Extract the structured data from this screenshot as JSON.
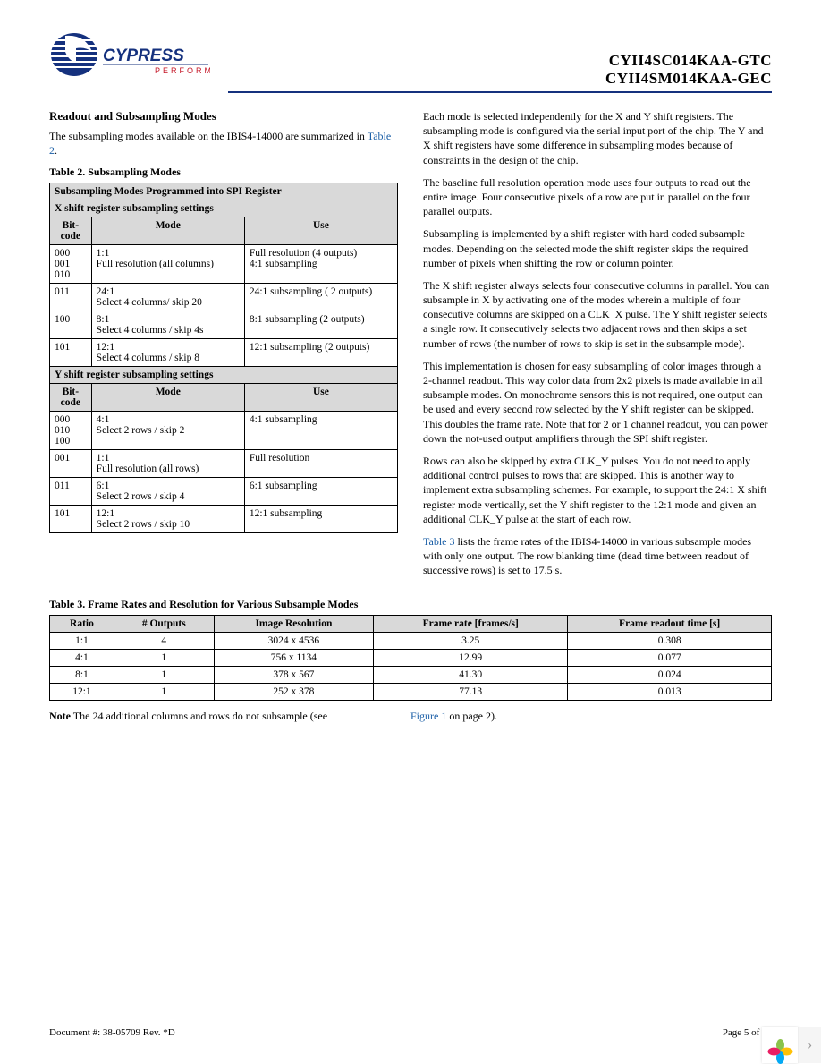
{
  "header": {
    "part1": "CYII4SC014KAA-GTC",
    "part2": "CYII4SM014KAA-GEC",
    "logo_brand": "CYPRESS",
    "logo_tag": "PERFORM"
  },
  "left": {
    "section_title": "Readout and Subsampling Modes",
    "intro_a": "The subsampling modes available on the IBIS4-14000 are summarized in ",
    "intro_link": "Table 2",
    "intro_b": ".",
    "t2_caption": "Table 2.  Subsampling Modes",
    "t2_title": "Subsampling Modes Programmed into SPI Register",
    "t2_x_sub": "X shift register subsampling settings",
    "t2_cols": {
      "bit": "Bit-code",
      "mode": "Mode",
      "use": "Use"
    },
    "t2_x": [
      {
        "bit": "000\n001\n010",
        "mode": "1:1\nFull resolution (all columns)",
        "use": "Full resolution (4 outputs)\n4:1 subsampling"
      },
      {
        "bit": "011",
        "mode": "24:1\nSelect 4 columns/ skip 20",
        "use": "24:1 subsampling ( 2 outputs)"
      },
      {
        "bit": "100",
        "mode": "8:1\nSelect 4 columns / skip 4s",
        "use": "8:1 subsampling (2 outputs)"
      },
      {
        "bit": "101",
        "mode": "12:1\nSelect 4 columns / skip 8",
        "use": "12:1 subsampling (2 outputs)"
      }
    ],
    "t2_y_sub": "Y shift register subsampling settings",
    "t2_y": [
      {
        "bit": "000\n010\n100",
        "mode": "4:1\nSelect 2 rows / skip 2",
        "use": "4:1 subsampling"
      },
      {
        "bit": "001",
        "mode": "1:1\nFull resolution (all rows)",
        "use": "Full resolution"
      },
      {
        "bit": "011",
        "mode": "6:1\nSelect 2 rows / skip 4",
        "use": "6:1 subsampling"
      },
      {
        "bit": "101",
        "mode": "12:1\nSelect 2 rows / skip 10",
        "use": "12:1 subsampling"
      }
    ]
  },
  "right": {
    "p1": "Each mode is selected independently for the X and Y shift registers. The subsampling mode is configured via the serial input port of the chip. The Y and X shift registers have some difference in subsampling modes because of constraints in the design of the chip.",
    "p2": "The baseline full resolution operation mode uses four outputs to read out the entire image. Four consecutive pixels of a row are put in parallel on the four parallel outputs.",
    "p3": "Subsampling is implemented by a shift register with hard coded subsample modes. Depending on the selected mode the shift register skips the required number of pixels when shifting the row or column pointer.",
    "p4": "The X shift register always selects four consecutive columns in parallel. You can subsample in X by activating one of the modes wherein a multiple of four consecutive columns are skipped on a CLK_X pulse. The Y shift register selects a single row. It consecutively selects two adjacent rows and then skips a set number of rows (the number of rows to skip is set in the subsample mode).",
    "p5": "This implementation is chosen for easy subsampling of color images through a 2-channel readout. This way color data from 2x2 pixels is made available in all subsample modes. On monochrome sensors this is not required, one output can be used and every second row selected by the Y shift register can be skipped. This doubles the frame rate. Note that for 2 or 1 channel readout, you can power down the not-used output amplifiers through the SPI shift register.",
    "p6": "Rows can also be skipped by extra CLK_Y pulses. You do not need to apply additional control pulses to rows that are skipped. This is another way to implement extra subsampling schemes. For example, to support the 24:1 X shift register mode vertically, set the Y shift register to the 12:1 mode and given an additional CLK_Y pulse at the start of each row.",
    "p7a": "Table 3",
    "p7b": " lists the frame rates of the IBIS4-14000 in various subsample modes with only one output. The row blanking time (dead time between readout of successive rows) is set to 17.5 s."
  },
  "t3": {
    "caption": "Table 3.  Frame Rates and Resolution for Various Subsample Modes",
    "cols": [
      "Ratio",
      "# Outputs",
      "Image Resolution",
      "Frame rate [frames/s]",
      "Frame readout time [s]"
    ],
    "rows": [
      [
        "1:1",
        "4",
        "3024 x 4536",
        "3.25",
        "0.308"
      ],
      [
        "4:1",
        "1",
        "756 x 1134",
        "12.99",
        "0.077"
      ],
      [
        "8:1",
        "1",
        "378 x 567",
        "41.30",
        "0.024"
      ],
      [
        "12:1",
        "1",
        "252 x 378",
        "77.13",
        "0.013"
      ]
    ]
  },
  "note": {
    "bold": "Note",
    "text": " The 24 additional columns and rows do not subsample (see ",
    "link": "Figure 1",
    "after": " on page 2)."
  },
  "footer": {
    "left": "Document #: 38-05709 Rev. *D",
    "right": "Page 5 of 27"
  },
  "colors": {
    "logo_blue": "#15317e",
    "logo_red": "#c41425",
    "petal1": "#8bc34a",
    "petal2": "#ffc107",
    "petal3": "#03a9f4",
    "petal4": "#e91e63"
  }
}
